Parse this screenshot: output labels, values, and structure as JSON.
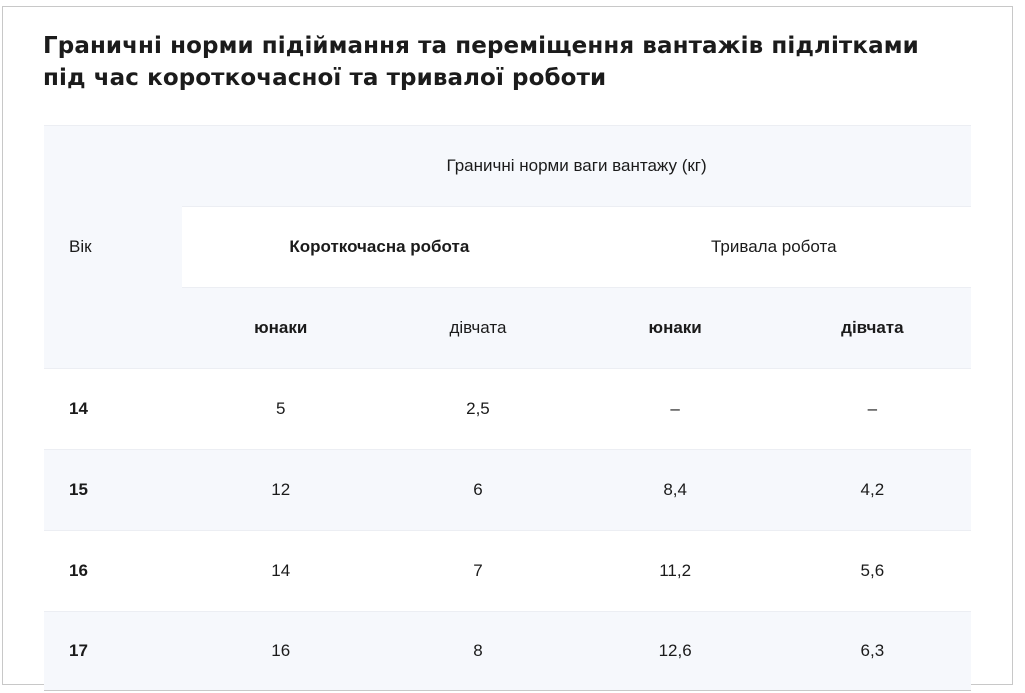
{
  "title": "Граничні норми підіймання та переміщення вантажів підлітками під час короткочасної та тривалої роботи",
  "table": {
    "age_header": "Вік",
    "group_header": "Граничні норми ваги вантажу (кг)",
    "subgroups": [
      "Короткочасна робота",
      "Тривала робота"
    ],
    "columns": [
      "юнаки",
      "дівчата",
      "юнаки",
      "дівчата"
    ],
    "rows": [
      {
        "age": "14",
        "values": [
          "5",
          "2,5",
          "–",
          "–"
        ]
      },
      {
        "age": "15",
        "values": [
          "12",
          "6",
          "8,4",
          "4,2"
        ]
      },
      {
        "age": "16",
        "values": [
          "14",
          "7",
          "11,2",
          "5,6"
        ]
      },
      {
        "age": "17",
        "values": [
          "16",
          "8",
          "12,6",
          "6,3"
        ]
      }
    ]
  },
  "colors": {
    "header_bg": "#f6f8fc",
    "text": "#1b1b1b",
    "border": "#c8c8c8"
  }
}
